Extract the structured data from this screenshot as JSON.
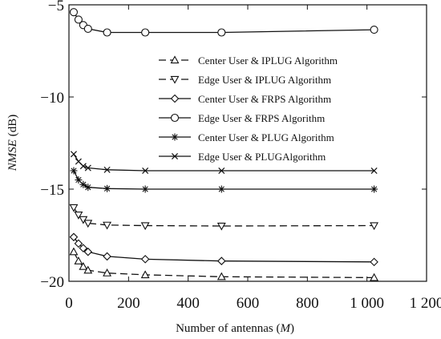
{
  "chart_data": {
    "type": "line",
    "title": "",
    "xlabel_text": "Number of  antennas (",
    "xlabel_var": "M",
    "xlabel_close": ")",
    "ylabel_var": "NMSE",
    "ylabel_unit": " (dB)",
    "xlim": [
      0,
      1200
    ],
    "ylim": [
      -20,
      -5
    ],
    "xticks": [
      0,
      200,
      400,
      600,
      800,
      1000,
      1200
    ],
    "xtick_labels": [
      "0",
      "200",
      "400",
      "600",
      "800",
      "1 000",
      "1 200"
    ],
    "yticks": [
      -20,
      -15,
      -10,
      -5
    ],
    "ytick_labels": [
      "−20",
      "−15",
      "−10",
      "−5"
    ],
    "grid": false,
    "legend_position": "upper-right",
    "series": [
      {
        "name": "Center User & IPLUG Algorithm",
        "marker": "triangle-up",
        "dash": "dashed",
        "x": [
          16,
          32,
          48,
          64,
          128,
          256,
          512,
          1024
        ],
        "y": [
          -18.4,
          -18.9,
          -19.2,
          -19.4,
          -19.55,
          -19.65,
          -19.75,
          -19.8
        ]
      },
      {
        "name": "Edge User & IPLUG Algorithm",
        "marker": "triangle-down",
        "dash": "dashed",
        "x": [
          16,
          32,
          48,
          64,
          128,
          256,
          512,
          1024
        ],
        "y": [
          -16.0,
          -16.4,
          -16.65,
          -16.85,
          -16.95,
          -16.98,
          -17.0,
          -16.98
        ]
      },
      {
        "name": "Center User & FRPS Algorithm",
        "marker": "diamond",
        "dash": "solid",
        "x": [
          16,
          32,
          48,
          64,
          128,
          256,
          512,
          1024
        ],
        "y": [
          -17.6,
          -17.95,
          -18.2,
          -18.4,
          -18.65,
          -18.8,
          -18.9,
          -18.95
        ]
      },
      {
        "name": "Edge User & FRPS Algorithm",
        "marker": "circle",
        "dash": "solid",
        "x": [
          16,
          32,
          48,
          64,
          128,
          256,
          512,
          1024
        ],
        "y": [
          -5.4,
          -5.8,
          -6.1,
          -6.3,
          -6.5,
          -6.5,
          -6.5,
          -6.35
        ]
      },
      {
        "name": "Center User & PLUG Algorithm",
        "marker": "star",
        "dash": "solid",
        "x": [
          16,
          32,
          48,
          64,
          128,
          256,
          512,
          1024
        ],
        "y": [
          -14.0,
          -14.5,
          -14.75,
          -14.9,
          -14.97,
          -15.0,
          -15.0,
          -15.0
        ]
      },
      {
        "name": "Edge User & PLUGAlgorithm",
        "marker": "x",
        "dash": "solid",
        "x": [
          16,
          32,
          48,
          64,
          128,
          256,
          512,
          1024
        ],
        "y": [
          -13.1,
          -13.5,
          -13.75,
          -13.85,
          -13.95,
          -14.0,
          -14.0,
          -14.0
        ]
      }
    ]
  }
}
